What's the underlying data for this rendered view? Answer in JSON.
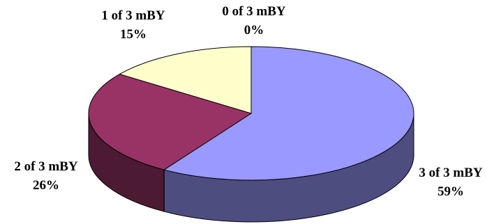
{
  "chart_data": {
    "type": "pie",
    "style": "3d",
    "start_angle_deg": 0,
    "direction": "clockwise",
    "slices": [
      {
        "label": "3 of 3 mBY",
        "pct_label": "59%",
        "value": 59,
        "color": "#9999ff",
        "side_color": "#4d4d80"
      },
      {
        "label": "2 of 3 mBY",
        "pct_label": "26%",
        "value": 26,
        "color": "#993366",
        "side_color": "#4d1a33"
      },
      {
        "label": "1 of 3 mBY",
        "pct_label": "15%",
        "value": 15,
        "color": "#ffffcc",
        "side_color": "#808066"
      },
      {
        "label": "0 of 3 mBY",
        "pct_label": "0%",
        "value": 0,
        "color": "#ccffff",
        "side_color": "#668080"
      }
    ],
    "legend": "none",
    "title": ""
  }
}
